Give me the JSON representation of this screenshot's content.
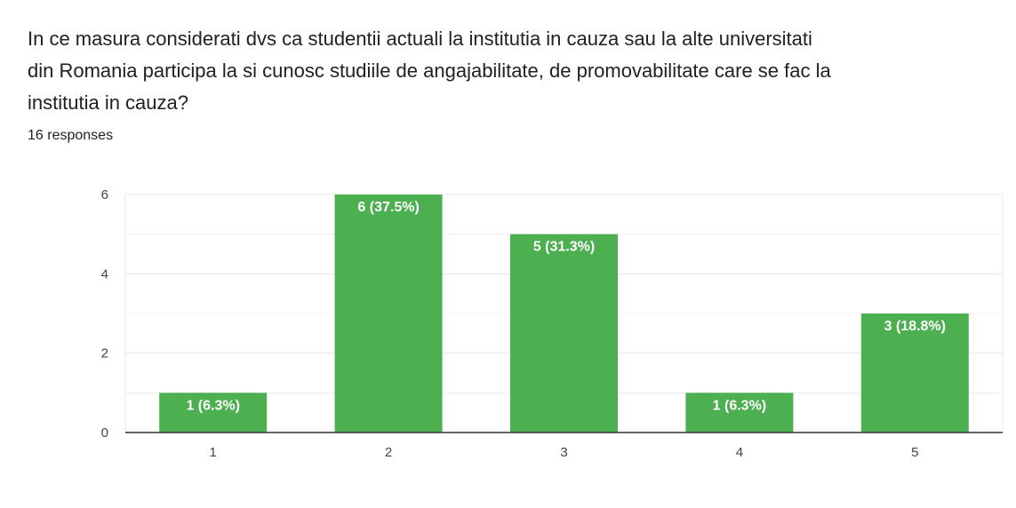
{
  "question": {
    "lines": [
      "In ce masura considerati dvs ca studentii actuali la institutia in cauza sau la alte universitati",
      "din Romania participa la si cunosc studiile de angajabilitate, de promovabilitate care se fac la",
      "institutia in cauza?"
    ]
  },
  "responses_label": "16 responses",
  "colors": {
    "bar": "#4caf50",
    "grid": "#e8e8e8",
    "axis": "#333333"
  },
  "chart_data": {
    "type": "bar",
    "categories": [
      "1",
      "2",
      "3",
      "4",
      "5"
    ],
    "values": [
      1,
      6,
      5,
      1,
      3
    ],
    "data_labels": [
      "1 (6.3%)",
      "6 (37.5%)",
      "5 (31.3%)",
      "1 (6.3%)",
      "3 (18.8%)"
    ],
    "yticks": [
      "0",
      "2",
      "4",
      "6"
    ],
    "ylim": [
      0,
      6
    ],
    "grid": true,
    "xlabel": "",
    "ylabel": ""
  }
}
